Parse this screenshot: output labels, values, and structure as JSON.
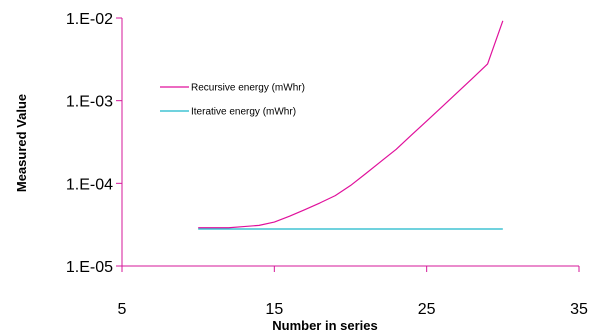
{
  "chart_data": {
    "type": "line",
    "title": "",
    "xlabel": "Number in series",
    "ylabel": "Measured Value",
    "x_scale": "linear",
    "y_scale": "log",
    "xlim": [
      5,
      35
    ],
    "ylim": [
      1e-05,
      0.01
    ],
    "x_ticks": [
      {
        "value": 5,
        "label": "5"
      },
      {
        "value": 15,
        "label": "15"
      },
      {
        "value": 25,
        "label": "25"
      },
      {
        "value": 35,
        "label": "35"
      }
    ],
    "y_ticks": [
      {
        "value": 1e-05,
        "label": "1.E-05"
      },
      {
        "value": 0.0001,
        "label": "1.E-04"
      },
      {
        "value": 0.001,
        "label": "1.E-03"
      },
      {
        "value": 0.01,
        "label": "1.E-02"
      }
    ],
    "grid": false,
    "legend_position": "top-left",
    "series": [
      {
        "name": "Recursive energy (mWhr)",
        "color": "#e0119c",
        "x": [
          10,
          11,
          12,
          13,
          14,
          15,
          16,
          17,
          18,
          19,
          20,
          21,
          22,
          23,
          24,
          25,
          26,
          27,
          28,
          29,
          30
        ],
        "y": [
          2.9e-05,
          2.9e-05,
          2.9e-05,
          3e-05,
          3.1e-05,
          3.4e-05,
          4e-05,
          4.8e-05,
          5.8e-05,
          7.1e-05,
          9.4e-05,
          0.000131,
          0.000184,
          0.000258,
          0.000383,
          0.000567,
          0.00084,
          0.00125,
          0.00186,
          0.00278,
          0.00925
        ]
      },
      {
        "name": "Iterative energy (mWhr)",
        "color": "#1ab7c9",
        "x": [
          10,
          30
        ],
        "y": [
          2.8e-05,
          2.8e-05
        ]
      }
    ]
  }
}
